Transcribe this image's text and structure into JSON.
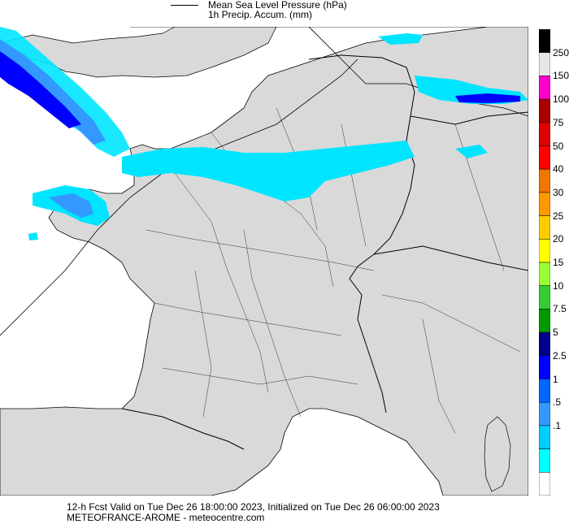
{
  "legend": {
    "pressure_label": "Mean Sea Level Pressure (hPa)",
    "precip_label": "1h Precip. Accum. (mm)"
  },
  "colorbar": {
    "labels": [
      "250",
      "150",
      "100",
      "75",
      "50",
      "40",
      "30",
      "25",
      "20",
      "15",
      "10",
      "7.5",
      "5",
      "2.5",
      "1",
      ".5",
      ".1"
    ],
    "colors": [
      "#000000",
      "#e6e6e6",
      "#ff00cc",
      "#aa0000",
      "#dd0000",
      "#ff0000",
      "#ee7700",
      "#ff9900",
      "#ffcc00",
      "#ffff00",
      "#99ff33",
      "#33cc33",
      "#009900",
      "#000088",
      "#0000ff",
      "#0066ff",
      "#3399ff",
      "#00ccff",
      "#00ffff",
      "#ffffff"
    ]
  },
  "map_colors": {
    "sea": "#ffffff",
    "land": "#d9d9d9",
    "precip_light": "#00e5ff",
    "precip_mid": "#3399ff",
    "precip_heavy": "#0000ff",
    "precip_dark": "#000088"
  },
  "footer": {
    "line1": "12-h Fcst Valid on Tue Dec 26 18:00:00 2023, Initialized on Tue Dec 26 06:00:00 2023",
    "line2": "METEOFRANCE-AROME  - meteocentre.com"
  }
}
